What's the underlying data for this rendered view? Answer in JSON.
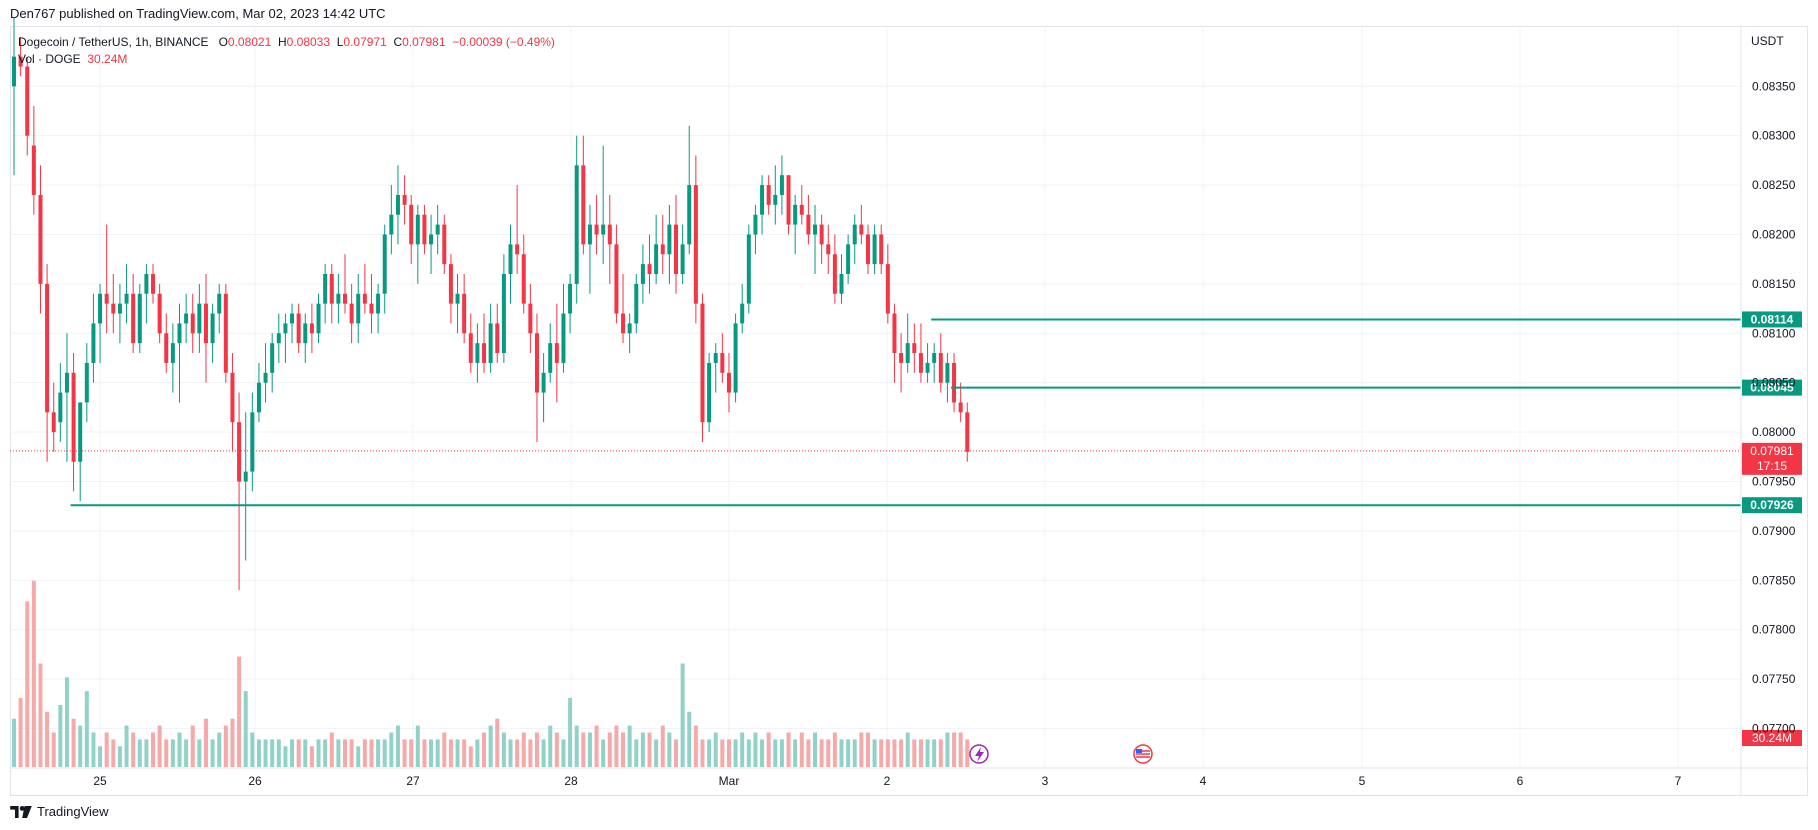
{
  "publisher_line": "Den767 published on TradingView.com, Mar 02, 2023 14:42 UTC",
  "legend": {
    "symbol": "Dogecoin / TetherUS, 1h, BINANCE",
    "o_label": "O",
    "o_value": "0.08021",
    "h_label": "H",
    "h_value": "0.08033",
    "l_label": "L",
    "l_value": "0.07971",
    "c_label": "C",
    "c_value": "0.07981",
    "change": "−0.00039 (−0.49%)",
    "volume_label": "Vol · DOGE",
    "volume_value": "30.24M"
  },
  "axis_unit": "USDT",
  "footer_brand": "TradingView",
  "colors": {
    "up": "#089981",
    "down": "#f23645",
    "level": "#089981",
    "vol_up": "#91d2c8",
    "vol_down": "#f7a9a9",
    "grid": "#f0f3fa"
  },
  "icons": [
    "tradingview-logo-icon",
    "lightning-event-icon",
    "us-flag-event-icon"
  ],
  "chart_data": {
    "type": "candlestick",
    "title": "Dogecoin / TetherUS, 1h, BINANCE",
    "interval": "1h",
    "ylim": [
      0.0766,
      0.0841
    ],
    "y_ticks": [
      "0.08350",
      "0.08300",
      "0.08250",
      "0.08200",
      "0.08150",
      "0.08100",
      "0.08050",
      "0.08000",
      "0.07950",
      "0.07900",
      "0.07850",
      "0.07800",
      "0.07750",
      "0.07700"
    ],
    "x_ticks": [
      "25",
      "26",
      "27",
      "28",
      "Mar",
      "2",
      "3",
      "4",
      "5",
      "6",
      "7"
    ],
    "grid": true,
    "last_price": "0.07981",
    "countdown": "17:15",
    "last_volume": "30.24M",
    "levels": [
      {
        "price": "0.08114",
        "from_candle": 139
      },
      {
        "price": "0.08045",
        "from_candle": 142
      },
      {
        "price": "0.07926",
        "from_candle": 9
      }
    ],
    "candles": [
      [
        0.0835,
        0.0842,
        0.0826,
        0.0838
      ],
      [
        0.0838,
        0.084,
        0.0836,
        0.0837
      ],
      [
        0.0837,
        0.0838,
        0.0828,
        0.083
      ],
      [
        0.0829,
        0.0833,
        0.0822,
        0.0824
      ],
      [
        0.0824,
        0.0827,
        0.0812,
        0.0815
      ],
      [
        0.0815,
        0.0817,
        0.0797,
        0.0802
      ],
      [
        0.0802,
        0.0805,
        0.0798,
        0.08
      ],
      [
        0.0801,
        0.0807,
        0.0799,
        0.0804
      ],
      [
        0.0804,
        0.081,
        0.0797,
        0.0806
      ],
      [
        0.0806,
        0.0808,
        0.0794,
        0.0797
      ],
      [
        0.0797,
        0.0803,
        0.0793,
        0.0803
      ],
      [
        0.0803,
        0.0809,
        0.0801,
        0.0807
      ],
      [
        0.0807,
        0.0814,
        0.0805,
        0.0811
      ],
      [
        0.0811,
        0.0815,
        0.0807,
        0.0814
      ],
      [
        0.0814,
        0.0821,
        0.081,
        0.0813
      ],
      [
        0.0813,
        0.0816,
        0.081,
        0.0812
      ],
      [
        0.0812,
        0.0815,
        0.0809,
        0.0813
      ],
      [
        0.0813,
        0.0817,
        0.0811,
        0.0814
      ],
      [
        0.0814,
        0.0816,
        0.0808,
        0.0809
      ],
      [
        0.0809,
        0.0815,
        0.0808,
        0.0814
      ],
      [
        0.0814,
        0.0817,
        0.0811,
        0.0816
      ],
      [
        0.0816,
        0.0817,
        0.0813,
        0.0814
      ],
      [
        0.0814,
        0.0815,
        0.0809,
        0.081
      ],
      [
        0.081,
        0.0812,
        0.0806,
        0.0807
      ],
      [
        0.0807,
        0.0811,
        0.0804,
        0.0809
      ],
      [
        0.0809,
        0.0813,
        0.0803,
        0.0811
      ],
      [
        0.0811,
        0.0814,
        0.0809,
        0.0812
      ],
      [
        0.0812,
        0.0814,
        0.0808,
        0.081
      ],
      [
        0.081,
        0.0815,
        0.0808,
        0.0813
      ],
      [
        0.0813,
        0.0816,
        0.0805,
        0.0809
      ],
      [
        0.0809,
        0.0813,
        0.0807,
        0.0812
      ],
      [
        0.0812,
        0.0815,
        0.081,
        0.0814
      ],
      [
        0.0814,
        0.0815,
        0.0805,
        0.0806
      ],
      [
        0.0806,
        0.0808,
        0.0798,
        0.0801
      ],
      [
        0.0801,
        0.0804,
        0.0784,
        0.0795
      ],
      [
        0.0795,
        0.0802,
        0.0787,
        0.0796
      ],
      [
        0.0796,
        0.0804,
        0.0794,
        0.0802
      ],
      [
        0.0802,
        0.0807,
        0.0801,
        0.0805
      ],
      [
        0.0805,
        0.0809,
        0.0803,
        0.0806
      ],
      [
        0.0806,
        0.081,
        0.0804,
        0.0809
      ],
      [
        0.0809,
        0.0812,
        0.0807,
        0.081
      ],
      [
        0.081,
        0.0812,
        0.0807,
        0.0811
      ],
      [
        0.0811,
        0.0813,
        0.0809,
        0.0812
      ],
      [
        0.0812,
        0.0813,
        0.0808,
        0.0809
      ],
      [
        0.0809,
        0.0812,
        0.0807,
        0.0811
      ],
      [
        0.0811,
        0.0813,
        0.0808,
        0.081
      ],
      [
        0.081,
        0.0814,
        0.0809,
        0.0813
      ],
      [
        0.0813,
        0.0817,
        0.0811,
        0.0816
      ],
      [
        0.0816,
        0.0817,
        0.0811,
        0.0813
      ],
      [
        0.0813,
        0.0816,
        0.0811,
        0.0814
      ],
      [
        0.0814,
        0.0818,
        0.0812,
        0.0813
      ],
      [
        0.0813,
        0.0815,
        0.0809,
        0.0811
      ],
      [
        0.0811,
        0.0816,
        0.0809,
        0.0814
      ],
      [
        0.0814,
        0.0817,
        0.0812,
        0.0813
      ],
      [
        0.0813,
        0.0816,
        0.081,
        0.0812
      ],
      [
        0.0812,
        0.0815,
        0.081,
        0.0814
      ],
      [
        0.0814,
        0.0821,
        0.0812,
        0.082
      ],
      [
        0.082,
        0.0825,
        0.0818,
        0.0822
      ],
      [
        0.0822,
        0.0827,
        0.0819,
        0.0824
      ],
      [
        0.0824,
        0.0826,
        0.0821,
        0.0823
      ],
      [
        0.0823,
        0.0824,
        0.0817,
        0.0819
      ],
      [
        0.0819,
        0.0823,
        0.0815,
        0.0822
      ],
      [
        0.0822,
        0.0823,
        0.0818,
        0.0819
      ],
      [
        0.0819,
        0.0822,
        0.0816,
        0.082
      ],
      [
        0.082,
        0.0823,
        0.0818,
        0.0821
      ],
      [
        0.0821,
        0.0822,
        0.0816,
        0.0817
      ],
      [
        0.0817,
        0.0818,
        0.0811,
        0.0813
      ],
      [
        0.0813,
        0.0816,
        0.081,
        0.0814
      ],
      [
        0.0814,
        0.0816,
        0.0809,
        0.081
      ],
      [
        0.081,
        0.0812,
        0.0806,
        0.0807
      ],
      [
        0.0807,
        0.0811,
        0.0805,
        0.0809
      ],
      [
        0.0809,
        0.0812,
        0.0806,
        0.0807
      ],
      [
        0.0807,
        0.0813,
        0.0806,
        0.0811
      ],
      [
        0.0811,
        0.0813,
        0.0807,
        0.0808
      ],
      [
        0.0808,
        0.0818,
        0.0807,
        0.0816
      ],
      [
        0.0816,
        0.0821,
        0.0813,
        0.0819
      ],
      [
        0.0819,
        0.0825,
        0.0816,
        0.0818
      ],
      [
        0.0818,
        0.082,
        0.0812,
        0.0813
      ],
      [
        0.0813,
        0.0815,
        0.0808,
        0.081
      ],
      [
        0.081,
        0.0812,
        0.0799,
        0.0804
      ],
      [
        0.0804,
        0.0808,
        0.0801,
        0.0806
      ],
      [
        0.0806,
        0.0811,
        0.0805,
        0.0809
      ],
      [
        0.0809,
        0.0813,
        0.0803,
        0.0807
      ],
      [
        0.0807,
        0.0815,
        0.0806,
        0.0812
      ],
      [
        0.0812,
        0.0816,
        0.081,
        0.0815
      ],
      [
        0.0815,
        0.083,
        0.0813,
        0.0827
      ],
      [
        0.0827,
        0.083,
        0.0818,
        0.0819
      ],
      [
        0.0819,
        0.0823,
        0.0814,
        0.0821
      ],
      [
        0.0821,
        0.0824,
        0.0818,
        0.082
      ],
      [
        0.082,
        0.0829,
        0.0817,
        0.0821
      ],
      [
        0.0821,
        0.0824,
        0.0815,
        0.0819
      ],
      [
        0.0819,
        0.0821,
        0.0811,
        0.0812
      ],
      [
        0.0812,
        0.0816,
        0.0809,
        0.081
      ],
      [
        0.081,
        0.0812,
        0.0808,
        0.0811
      ],
      [
        0.0811,
        0.0816,
        0.081,
        0.0815
      ],
      [
        0.0815,
        0.0819,
        0.0813,
        0.0817
      ],
      [
        0.0817,
        0.082,
        0.0814,
        0.0816
      ],
      [
        0.0816,
        0.0822,
        0.0815,
        0.0819
      ],
      [
        0.0819,
        0.0822,
        0.0816,
        0.0818
      ],
      [
        0.0818,
        0.0823,
        0.0815,
        0.0821
      ],
      [
        0.0821,
        0.0824,
        0.0814,
        0.0816
      ],
      [
        0.0816,
        0.0821,
        0.0815,
        0.0819
      ],
      [
        0.0819,
        0.0831,
        0.0818,
        0.0825
      ],
      [
        0.0825,
        0.0828,
        0.0811,
        0.0813
      ],
      [
        0.0813,
        0.0814,
        0.0799,
        0.0801
      ],
      [
        0.0801,
        0.0808,
        0.08,
        0.0807
      ],
      [
        0.0807,
        0.0809,
        0.0804,
        0.0808
      ],
      [
        0.0808,
        0.081,
        0.0805,
        0.0806
      ],
      [
        0.0806,
        0.0808,
        0.0802,
        0.0804
      ],
      [
        0.0804,
        0.0812,
        0.0803,
        0.0811
      ],
      [
        0.0811,
        0.0815,
        0.081,
        0.0813
      ],
      [
        0.0813,
        0.0821,
        0.0812,
        0.082
      ],
      [
        0.082,
        0.0823,
        0.0818,
        0.0822
      ],
      [
        0.0822,
        0.0826,
        0.082,
        0.0825
      ],
      [
        0.0825,
        0.0826,
        0.0822,
        0.0823
      ],
      [
        0.0823,
        0.0827,
        0.0821,
        0.0824
      ],
      [
        0.0824,
        0.0828,
        0.0822,
        0.0826
      ],
      [
        0.0826,
        0.0826,
        0.082,
        0.0821
      ],
      [
        0.0821,
        0.0824,
        0.0818,
        0.0823
      ],
      [
        0.0823,
        0.0825,
        0.0821,
        0.0822
      ],
      [
        0.0822,
        0.0824,
        0.0819,
        0.082
      ],
      [
        0.082,
        0.0823,
        0.0816,
        0.0821
      ],
      [
        0.0821,
        0.0822,
        0.0817,
        0.0819
      ],
      [
        0.0819,
        0.0821,
        0.0816,
        0.0818
      ],
      [
        0.0818,
        0.082,
        0.0813,
        0.0814
      ],
      [
        0.0814,
        0.0818,
        0.0813,
        0.0816
      ],
      [
        0.0816,
        0.082,
        0.0815,
        0.0819
      ],
      [
        0.0819,
        0.0822,
        0.0817,
        0.0821
      ],
      [
        0.0821,
        0.0823,
        0.0819,
        0.082
      ],
      [
        0.082,
        0.0821,
        0.0816,
        0.0817
      ],
      [
        0.0817,
        0.0821,
        0.0816,
        0.082
      ],
      [
        0.082,
        0.0821,
        0.0816,
        0.0817
      ],
      [
        0.0817,
        0.0819,
        0.0811,
        0.0812
      ],
      [
        0.0812,
        0.0813,
        0.0805,
        0.0808
      ],
      [
        0.0808,
        0.081,
        0.0804,
        0.0807
      ],
      [
        0.0807,
        0.0812,
        0.0806,
        0.0809
      ],
      [
        0.0809,
        0.0811,
        0.0806,
        0.0808
      ],
      [
        0.0808,
        0.0811,
        0.0805,
        0.0806
      ],
      [
        0.0806,
        0.0809,
        0.0805,
        0.0807
      ],
      [
        0.0807,
        0.0809,
        0.0805,
        0.0808
      ],
      [
        0.0808,
        0.081,
        0.0804,
        0.0805
      ],
      [
        0.0805,
        0.0808,
        0.0803,
        0.0807
      ],
      [
        0.0807,
        0.0808,
        0.0802,
        0.0803
      ],
      [
        0.0803,
        0.0805,
        0.0801,
        0.0802
      ],
      [
        0.0802,
        0.0803,
        0.0797,
        0.0798
      ]
    ],
    "volumes": [
      7,
      10,
      24,
      27,
      15,
      8,
      5,
      9,
      13,
      7,
      6,
      11,
      5,
      3,
      5,
      4,
      3,
      6,
      5,
      4,
      4,
      5,
      6,
      4,
      4,
      5,
      4,
      6,
      4,
      7,
      4,
      5,
      6,
      7,
      16,
      11,
      5,
      4,
      4,
      4,
      4,
      3,
      4,
      4,
      4,
      3,
      4,
      4,
      5,
      4,
      4,
      4,
      3,
      4,
      4,
      4,
      4,
      5,
      6,
      4,
      4,
      6,
      4,
      4,
      4,
      5,
      4,
      4,
      4,
      3,
      4,
      5,
      6,
      7,
      5,
      4,
      4,
      5,
      4,
      5,
      4,
      6,
      5,
      4,
      10,
      6,
      5,
      5,
      6,
      4,
      5,
      6,
      5,
      6,
      4,
      5,
      5,
      4,
      6,
      5,
      4,
      15,
      8,
      6,
      4,
      4,
      5,
      4,
      4,
      4,
      5,
      4,
      5,
      4,
      5,
      4,
      4,
      5,
      4,
      5,
      4,
      5,
      4,
      4,
      5,
      4,
      4,
      4,
      5,
      5,
      4,
      4,
      4,
      4,
      4,
      5,
      4,
      4,
      4,
      4,
      4,
      5,
      5,
      5,
      4
    ]
  }
}
